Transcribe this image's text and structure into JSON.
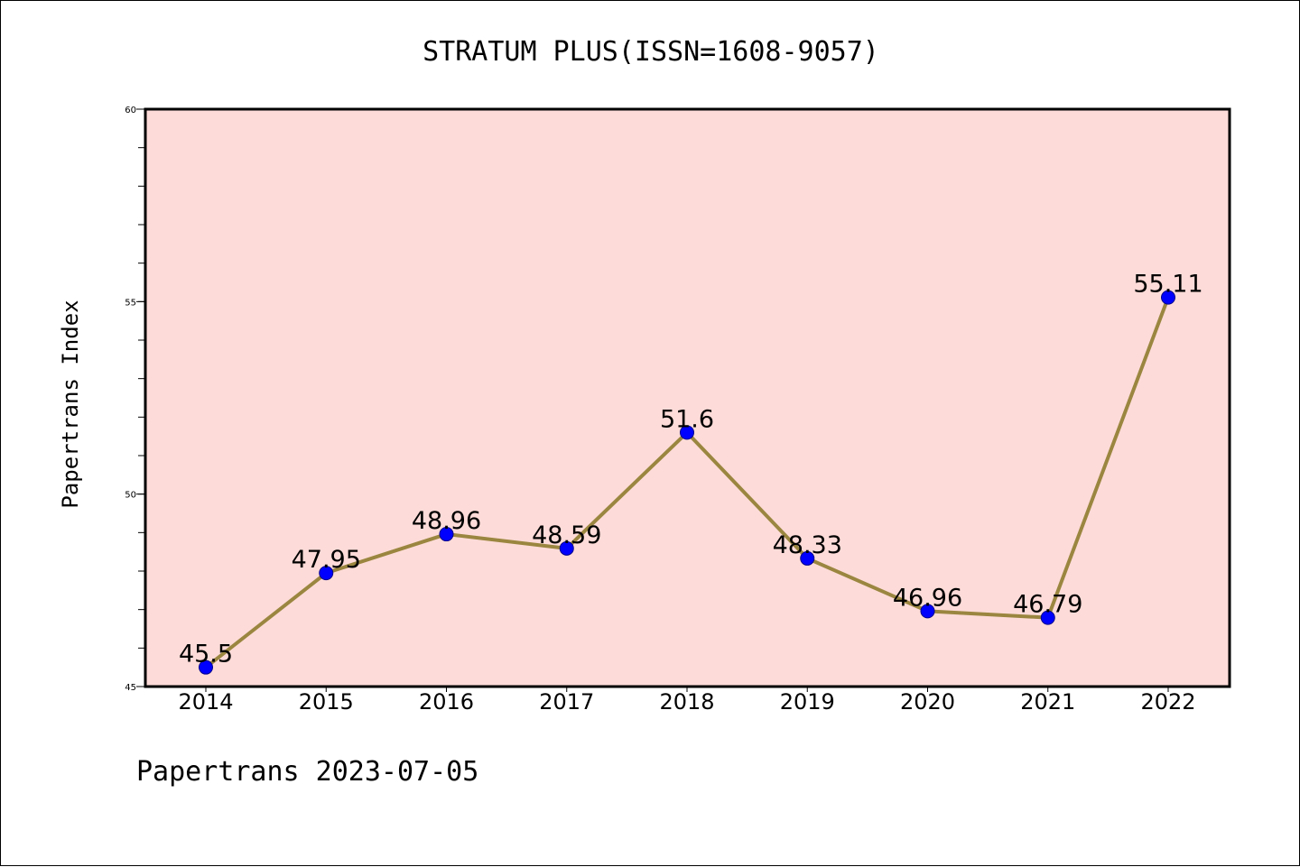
{
  "chart_data": {
    "type": "line",
    "title": "STRATUM PLUS(ISSN=1608-9057)",
    "xlabel": "",
    "ylabel": "Papertrans Index",
    "categories": [
      "2014",
      "2015",
      "2016",
      "2017",
      "2018",
      "2019",
      "2020",
      "2021",
      "2022"
    ],
    "series": [
      {
        "values": [
          45.5,
          47.95,
          48.96,
          48.59,
          51.6,
          48.33,
          46.96,
          46.79,
          55.11
        ],
        "data_labels": [
          "45.5",
          "47.95",
          "48.96",
          "48.59",
          "51.6",
          "48.33",
          "46.96",
          "46.79",
          "55.11"
        ]
      }
    ],
    "ylim": [
      45,
      60
    ],
    "yticks": [
      "45",
      "50",
      "55",
      "60"
    ],
    "grid": false,
    "colors": {
      "plot_background": "#fddbd8",
      "line": "#9b8640",
      "marker": "#0000ff"
    },
    "footer": "Papertrans 2023-07-05"
  }
}
